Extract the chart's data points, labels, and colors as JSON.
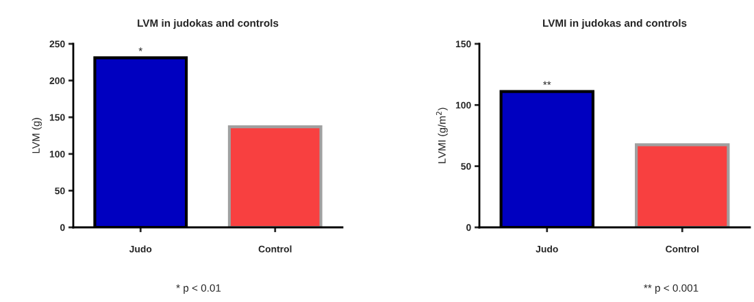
{
  "chart_data": [
    {
      "type": "bar",
      "title": "LVM in judokas and controls",
      "ylabel": "LVM (g)",
      "categories": [
        "Judo",
        "Control"
      ],
      "values": [
        231,
        137
      ],
      "colors": [
        "#0000c0",
        "#f84040"
      ],
      "ylim": [
        0,
        250
      ],
      "yticks": [
        0,
        50,
        100,
        150,
        200,
        250
      ],
      "grid": false,
      "annotations": [
        {
          "text": "*",
          "x": "Judo",
          "y": 231
        },
        "* p < 0.01"
      ]
    },
    {
      "type": "bar",
      "title": "LVMI in judokas and controls",
      "ylabel": "LVMI (g/m$^{2}$)",
      "categories": [
        "Judo",
        "Control"
      ],
      "values": [
        111,
        67.5
      ],
      "colors": [
        "#0000c0",
        "#f84040"
      ],
      "ylim": [
        0,
        150
      ],
      "yticks": [
        0,
        50,
        100,
        150
      ],
      "grid": false,
      "annotations": [
        {
          "text": "**",
          "x": "Judo",
          "y": 111
        },
        "** p < 0.001"
      ]
    }
  ]
}
